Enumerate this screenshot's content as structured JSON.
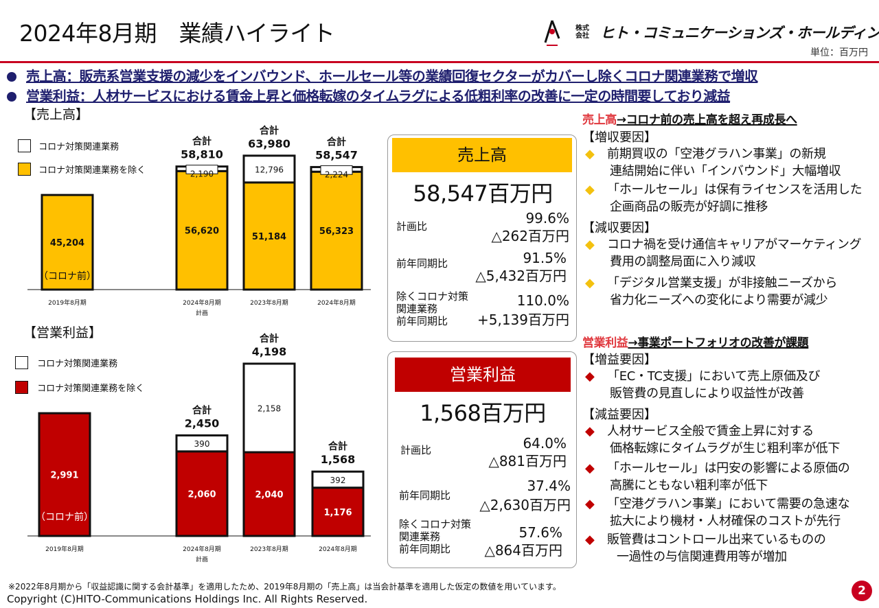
{
  "header": {
    "title": "2024年8月期　業績ハイライト",
    "company": "ヒト・コミュニケーションズ・ホールディングス",
    "company_prefix": "株式会社",
    "unit": "単位：百万円"
  },
  "bullets": [
    "売上高：販売系営業支援の減少をインバウンド、ホールセール等の業績回復セクターがカバーし除くコロナ関連業務で増収",
    "営業利益：人材サービスにおける賃金上昇と価格転嫁のタイムラグによる低粗利率の改善に一定の時間要しており減益"
  ],
  "colors": {
    "accent_red": "#c8001f",
    "sales_yellow": "#ffc000",
    "profit_red": "#c00000",
    "navy": "#1f1f6e"
  },
  "chart_data": [
    {
      "type": "bar",
      "section_label": "【売上高】",
      "stacked": true,
      "categories": [
        "2019年8月期",
        "2024年8月期",
        "2023年8月期",
        "2024年8月期"
      ],
      "category_sublabels": [
        "",
        "計画",
        "",
        ""
      ],
      "series": [
        {
          "name": "コロナ対策関連業務を除く",
          "values": [
            45204,
            56620,
            51184,
            56323
          ],
          "labels": [
            "45,204",
            "56,620",
            "51,184",
            "56,323"
          ],
          "color": "#ffc000"
        },
        {
          "name": "コロナ対策関連業務",
          "values": [
            0,
            2190,
            12796,
            2224
          ],
          "labels": [
            "",
            "2,190",
            "12,796",
            "2,224"
          ],
          "color": "#ffffff"
        }
      ],
      "total_label": "合計",
      "totals": [
        null,
        "58,810",
        "63,980",
        "58,547"
      ],
      "annotation": "（コロナ前）"
    },
    {
      "type": "bar",
      "section_label": "【営業利益】",
      "stacked": true,
      "categories": [
        "2019年8月期",
        "2024年8月期",
        "2023年8月期",
        "2024年8月期"
      ],
      "category_sublabels": [
        "",
        "計画",
        "",
        ""
      ],
      "series": [
        {
          "name": "コロナ対策関連業務を除く",
          "values": [
            2991,
            2060,
            2040,
            1176
          ],
          "labels": [
            "2,991",
            "2,060",
            "2,040",
            "1,176"
          ],
          "color": "#c00000"
        },
        {
          "name": "コロナ対策関連業務",
          "values": [
            0,
            390,
            2158,
            392
          ],
          "labels": [
            "",
            "390",
            "2,158",
            "392"
          ],
          "color": "#ffffff"
        }
      ],
      "total_label": "合計",
      "totals": [
        null,
        "2,450",
        "4,198",
        "1,568"
      ],
      "annotation": "（コロナ前）"
    }
  ],
  "sales_card": {
    "title": "売上高",
    "big": "58,547百万円",
    "rows": [
      {
        "label": "計画比",
        "v1": "99.6%",
        "v2": "△262百万円"
      },
      {
        "label": "前年同期比",
        "v1": "91.5%",
        "v2": "△5,432百万円"
      },
      {
        "label": "除くコロナ対策\n関連業務\n前年同期比",
        "v1": "110.0%",
        "v2": "+5,139百万円"
      }
    ]
  },
  "profit_card": {
    "title": "営業利益",
    "big": "1,568百万円",
    "rows": [
      {
        "label": "計画比",
        "v1": "64.0%",
        "v2": "△881百万円"
      },
      {
        "label": "前年同期比",
        "v1": "37.4%",
        "v2": "△2,630百万円"
      },
      {
        "label": "除くコロナ対策\n関連業務\n前年同期比",
        "v1": "57.6%",
        "v2": "△864百万円"
      }
    ]
  },
  "right_panel": {
    "sales": {
      "heading_highlight": "売上高",
      "heading_rest": "→コロナ前の売上高を超え再成長へ",
      "increase_label": "【増収要因】",
      "increase_items": [
        [
          "前期買収の「空港グラハン事業」の新規",
          "連結開始に伴い「インバウンド」大幅増収"
        ],
        [
          "「ホールセール」は保有ライセンスを活用した",
          "企画商品の販売が好調に推移"
        ]
      ],
      "decrease_label": "【減収要因】",
      "decrease_items": [
        [
          "コロナ禍を受け通信キャリアがマーケティング",
          "費用の調整局面に入り減収"
        ],
        [
          "「デジタル営業支援」が非接触ニーズから",
          "省力化ニーズへの変化により需要が減少"
        ]
      ]
    },
    "profit": {
      "heading_highlight": "営業利益",
      "heading_rest": "→事業ポートフォリオの改善が課題",
      "increase_label": "【増益要因】",
      "increase_items": [
        [
          "「EC・TC支援」において売上原価及び",
          "販管費の見直しにより収益性が改善"
        ]
      ],
      "decrease_label": "【減益要因】",
      "decrease_items": [
        [
          "人材サービス全般で賃金上昇に対する",
          "価格転嫁にタイムラグが生じ粗利率が低下"
        ],
        [
          "「ホールセール」は円安の影響による原価の",
          "高騰にともない粗利率が低下"
        ],
        [
          "「空港グラハン事業」において需要の急速な",
          "拡大により機材・人材確保のコストが先行"
        ],
        [
          "販管費はコントロール出来ているものの",
          "一過性の与信関連費用等が増加"
        ]
      ]
    }
  },
  "footer": {
    "footnote": "※2022年8月期から「収益認識に関する会計基準」を適用したため、2019年8月期の「売上高」は当会計基準を適用した仮定の数値を用いています。",
    "copyright": "Copyright (C)HITO-Communications Holdings Inc. All Rights Reserved.",
    "page": "2"
  }
}
